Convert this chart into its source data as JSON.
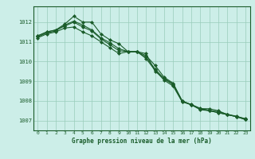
{
  "xlabel": "Graphe pression niveau de la mer (hPa)",
  "bg_color": "#cceee8",
  "grid_color": "#99ccbb",
  "line_color": "#1a5c2a",
  "ylim": [
    1006.5,
    1012.8
  ],
  "xlim": [
    -0.5,
    23.5
  ],
  "y_ticks": [
    1007,
    1008,
    1009,
    1010,
    1011,
    1012
  ],
  "x_ticks": [
    0,
    1,
    2,
    3,
    4,
    5,
    6,
    7,
    8,
    9,
    10,
    11,
    12,
    13,
    14,
    15,
    16,
    17,
    18,
    19,
    20,
    21,
    22,
    23
  ],
  "series": [
    [
      1011.3,
      1011.5,
      1011.6,
      1011.9,
      1012.3,
      1012.0,
      1012.0,
      1011.4,
      1011.1,
      1010.9,
      1010.5,
      1010.5,
      1010.3,
      1009.8,
      1009.2,
      1008.9,
      1008.0,
      1007.8,
      1007.6,
      1007.6,
      1007.5,
      1007.3,
      1007.2,
      1007.1
    ],
    [
      1011.3,
      1011.5,
      1011.6,
      1011.8,
      1012.0,
      1011.75,
      1011.55,
      1011.15,
      1010.85,
      1010.55,
      1010.5,
      1010.5,
      1010.15,
      1009.55,
      1009.05,
      1008.75,
      1007.95,
      1007.8,
      1007.6,
      1007.5,
      1007.4,
      1007.3,
      1007.2,
      1007.05
    ],
    [
      1011.2,
      1011.4,
      1011.5,
      1011.7,
      1011.75,
      1011.5,
      1011.3,
      1011.0,
      1010.7,
      1010.4,
      1010.5,
      1010.5,
      1010.4,
      1009.5,
      1009.15,
      1008.85,
      1008.0,
      1007.8,
      1007.55,
      1007.5,
      1007.4,
      1007.3,
      1007.2,
      1007.05
    ],
    [
      1011.25,
      1011.45,
      1011.55,
      1011.85,
      1012.05,
      1011.85,
      1011.6,
      1011.2,
      1010.95,
      1010.65,
      1010.5,
      1010.5,
      1010.22,
      1009.62,
      1009.12,
      1008.82,
      1007.97,
      1007.82,
      1007.62,
      1007.52,
      1007.45,
      1007.32,
      1007.22,
      1007.08
    ]
  ]
}
